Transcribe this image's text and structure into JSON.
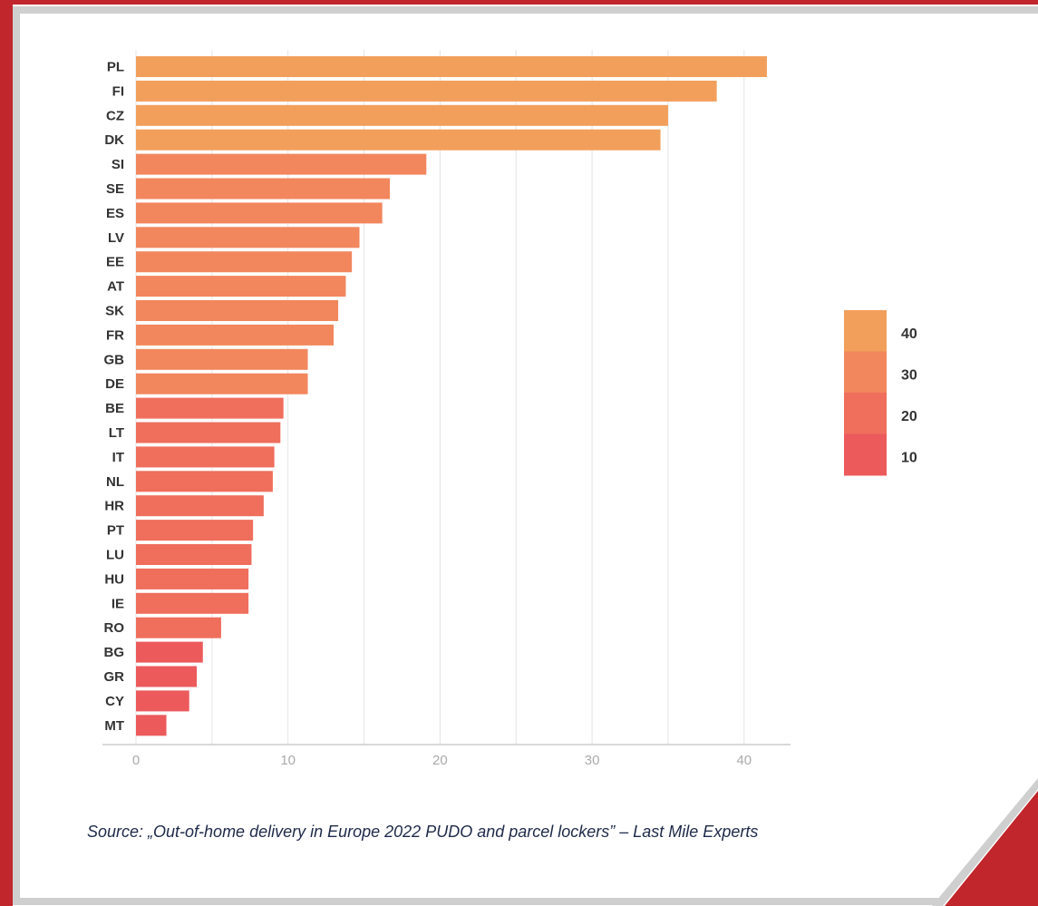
{
  "chart_data": {
    "type": "bar",
    "orientation": "horizontal",
    "categories": [
      "PL",
      "FI",
      "CZ",
      "DK",
      "SI",
      "SE",
      "ES",
      "LV",
      "EE",
      "AT",
      "SK",
      "FR",
      "GB",
      "DE",
      "BE",
      "LT",
      "IT",
      "NL",
      "HR",
      "PT",
      "LU",
      "HU",
      "IE",
      "RO",
      "BG",
      "GR",
      "CY",
      "MT"
    ],
    "values": [
      41.5,
      38.2,
      35.0,
      34.5,
      19.1,
      16.7,
      16.2,
      14.7,
      14.2,
      13.8,
      13.3,
      13.0,
      11.3,
      11.3,
      9.7,
      9.5,
      9.1,
      9.0,
      8.4,
      7.7,
      7.6,
      7.4,
      7.4,
      5.6,
      4.4,
      4.0,
      3.5,
      2.0
    ],
    "xlim": [
      0,
      42
    ],
    "xticks": [
      0,
      10,
      20,
      30,
      40
    ],
    "grid": true,
    "legend": {
      "placement": "right",
      "type": "color-scale",
      "entries": [
        "40",
        "30",
        "20",
        "10"
      ],
      "colors": [
        "#f29f5c",
        "#f2865d",
        "#ef6e5c",
        "#ec5a5c"
      ]
    },
    "source": "Source: „Out-of-home delivery in Europe 2022 PUDO and parcel lockers” – Last Mile Experts"
  },
  "colors": {
    "frame_red": "#c0262b",
    "frame_gray": "#cfcfcf"
  }
}
